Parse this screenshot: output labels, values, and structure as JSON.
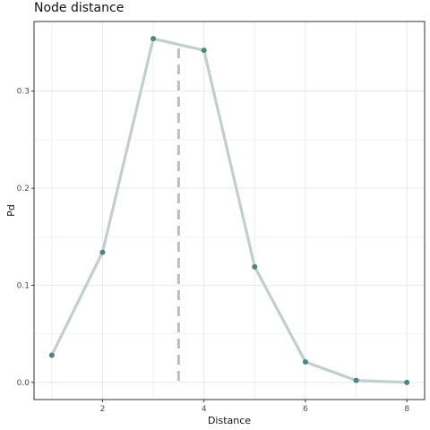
{
  "chart_data": {
    "type": "line",
    "title": "Node distance",
    "xlabel": "Distance",
    "ylabel": "Pd",
    "x": [
      1,
      2,
      3,
      4,
      5,
      6,
      7,
      8
    ],
    "series": [
      {
        "values": [
          0.028,
          0.134,
          0.354,
          0.342,
          0.119,
          0.021,
          0.002,
          0.0
        ]
      }
    ],
    "xlim": [
      0.65,
      8.35
    ],
    "ylim": [
      -0.0177,
      0.3717
    ],
    "xticks": [
      2,
      4,
      6,
      8
    ],
    "yticks": [
      0.0,
      0.1,
      0.2,
      0.3
    ],
    "xtick_labels": [
      "2",
      "4",
      "6",
      "8"
    ],
    "ytick_labels": [
      "0.0",
      "0.1",
      "0.2",
      "0.3"
    ],
    "reference_line": {
      "x": 3.5,
      "y_top": 0.344,
      "style": "dashed",
      "color": "#bdbdbd"
    },
    "grid": true,
    "colors": {
      "line": "#c2cfcc",
      "point": "#4a8483",
      "grid": "#ebebeb",
      "panel_border": "#333333"
    }
  }
}
